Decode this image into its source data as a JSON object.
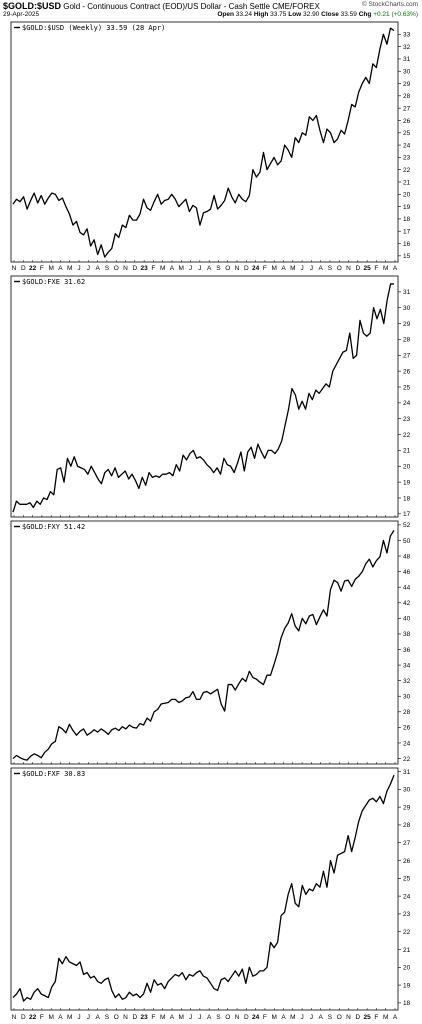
{
  "header": {
    "symbol": "$GOLD:$USD",
    "description": "Gold - Continuous Contract (EOD)/US Dollar - Cash Settle",
    "exchange": "CME/FOREX",
    "date": "29-Apr-2025",
    "open_label": "Open",
    "open": "33.24",
    "high_label": "High",
    "high": "33.75",
    "low_label": "Low",
    "low": "32.90",
    "close_label": "Close",
    "close": "33.59",
    "chg_label": "Chg",
    "chg": "+0.21 (+0.63%)",
    "brand": "© StockCharts.com"
  },
  "x_axis_labels": [
    {
      "label": "N",
      "year": false
    },
    {
      "label": "D",
      "year": false
    },
    {
      "label": "22",
      "year": true
    },
    {
      "label": "F",
      "year": false
    },
    {
      "label": "M",
      "year": false
    },
    {
      "label": "A",
      "year": false
    },
    {
      "label": "M",
      "year": false
    },
    {
      "label": "J",
      "year": false
    },
    {
      "label": "J",
      "year": false
    },
    {
      "label": "A",
      "year": false
    },
    {
      "label": "S",
      "year": false
    },
    {
      "label": "O",
      "year": false
    },
    {
      "label": "N",
      "year": false
    },
    {
      "label": "D",
      "year": false
    },
    {
      "label": "23",
      "year": true
    },
    {
      "label": "F",
      "year": false
    },
    {
      "label": "M",
      "year": false
    },
    {
      "label": "A",
      "year": false
    },
    {
      "label": "M",
      "year": false
    },
    {
      "label": "J",
      "year": false
    },
    {
      "label": "J",
      "year": false
    },
    {
      "label": "A",
      "year": false
    },
    {
      "label": "S",
      "year": false
    },
    {
      "label": "O",
      "year": false
    },
    {
      "label": "N",
      "year": false
    },
    {
      "label": "D",
      "year": false
    },
    {
      "label": "24",
      "year": true
    },
    {
      "label": "F",
      "year": false
    },
    {
      "label": "M",
      "year": false
    },
    {
      "label": "A",
      "year": false
    },
    {
      "label": "M",
      "year": false
    },
    {
      "label": "J",
      "year": false
    },
    {
      "label": "J",
      "year": false
    },
    {
      "label": "A",
      "year": false
    },
    {
      "label": "S",
      "year": false
    },
    {
      "label": "O",
      "year": false
    },
    {
      "label": "N",
      "year": false
    },
    {
      "label": "D",
      "year": false
    },
    {
      "label": "25",
      "year": true
    },
    {
      "label": "F",
      "year": false
    },
    {
      "label": "M",
      "year": false
    },
    {
      "label": "A",
      "year": false
    }
  ],
  "chart_data": [
    {
      "type": "line",
      "label": "$GOLD:$USD (Weekly) 33.59 (28 Apr)",
      "x_start": "2021-11",
      "x_end": "2025-04",
      "ylim": [
        14.5,
        34
      ],
      "yticks": [
        15,
        16,
        17,
        18,
        19,
        20,
        21,
        22,
        23,
        24,
        25,
        26,
        27,
        28,
        29,
        30,
        31,
        32,
        33
      ],
      "values": [
        19.2,
        19.6,
        19.4,
        19.8,
        18.8,
        19.5,
        20.1,
        19.3,
        19.9,
        19.2,
        19.7,
        20.1,
        20.0,
        19.5,
        19.7,
        19.0,
        18.4,
        17.5,
        17.8,
        16.9,
        16.7,
        17.2,
        15.8,
        16.3,
        15.1,
        15.9,
        14.9,
        15.3,
        15.6,
        16.8,
        16.5,
        17.5,
        17.3,
        18.3,
        17.9,
        17.9,
        18.4,
        19.6,
        18.9,
        18.7,
        19.4,
        20.0,
        19.2,
        19.5,
        19.6,
        20.0,
        19.6,
        19.0,
        19.3,
        19.6,
        18.6,
        19.1,
        18.9,
        17.5,
        18.5,
        18.6,
        18.8,
        19.9,
        18.8,
        19.1,
        19.5,
        20.5,
        19.8,
        19.3,
        20.0,
        19.6,
        19.4,
        19.9,
        22.0,
        21.4,
        21.8,
        23.4,
        22.0,
        22.5,
        23.0,
        22.4,
        22.7,
        24.0,
        23.6,
        23.0,
        24.6,
        24.2,
        25.0,
        24.8,
        26.3,
        26.0,
        26.4,
        25.2,
        24.2,
        25.3,
        25.0,
        24.2,
        24.5,
        25.2,
        24.9,
        26.0,
        27.3,
        27.1,
        28.3,
        29.0,
        29.5,
        29.0,
        30.6,
        30.3,
        31.8,
        33.0,
        32.2,
        33.5,
        33.3
      ]
    },
    {
      "type": "line",
      "label": "$GOLD:FXE 31.62",
      "x_start": "2021-11",
      "x_end": "2025-04",
      "ylim": [
        16.8,
        32
      ],
      "yticks": [
        17,
        18,
        19,
        20,
        21,
        22,
        23,
        24,
        25,
        26,
        27,
        28,
        29,
        30,
        31
      ],
      "values": [
        17.1,
        17.8,
        17.6,
        17.6,
        17.6,
        17.7,
        17.4,
        17.8,
        17.6,
        18.0,
        17.9,
        18.4,
        18.2,
        19.8,
        19.9,
        19.0,
        20.5,
        20.0,
        20.6,
        20.0,
        19.9,
        19.8,
        19.5,
        20.0,
        19.6,
        19.2,
        18.9,
        19.6,
        19.8,
        19.4,
        19.9,
        19.3,
        19.5,
        19.7,
        19.2,
        19.5,
        19.1,
        18.6,
        19.3,
        18.8,
        19.6,
        19.3,
        19.4,
        19.3,
        19.5,
        19.5,
        19.6,
        19.4,
        20.1,
        19.7,
        20.7,
        20.4,
        20.8,
        21.0,
        20.5,
        20.6,
        20.4,
        20.1,
        19.9,
        19.6,
        19.9,
        19.5,
        20.5,
        20.1,
        20.0,
        19.6,
        20.2,
        20.9,
        19.7,
        20.9,
        21.2,
        20.5,
        21.4,
        20.9,
        20.5,
        21.0,
        21.0,
        20.8,
        21.1,
        21.6,
        22.6,
        23.6,
        24.9,
        24.5,
        23.6,
        24.1,
        23.6,
        24.6,
        24.2,
        24.8,
        24.6,
        24.9,
        25.2,
        25.0,
        26.0,
        26.4,
        26.8,
        27.2,
        27.3,
        28.4,
        26.8,
        27.0,
        29.2,
        28.4,
        28.2,
        28.4,
        30.0,
        29.3,
        29.9,
        29.0,
        30.5,
        31.5,
        31.5
      ]
    },
    {
      "type": "line",
      "label": "$GOLD:FXY 51.42",
      "x_start": "2021-11",
      "x_end": "2025-04",
      "ylim": [
        21.3,
        52.5
      ],
      "yticks": [
        22,
        24,
        26,
        28,
        30,
        32,
        34,
        36,
        38,
        40,
        42,
        44,
        46,
        48,
        50,
        52
      ],
      "values": [
        22.0,
        22.4,
        22.1,
        21.9,
        21.8,
        22.3,
        22.6,
        22.4,
        22.1,
        22.8,
        23.2,
        23.9,
        24.2,
        26.1,
        25.8,
        25.3,
        26.4,
        25.6,
        25.0,
        25.5,
        25.8,
        25.0,
        25.3,
        25.7,
        25.4,
        25.8,
        25.5,
        25.1,
        25.7,
        25.9,
        25.6,
        26.1,
        25.8,
        26.3,
        26.0,
        25.9,
        26.5,
        26.3,
        27.2,
        26.8,
        28.0,
        28.3,
        29.0,
        29.1,
        29.2,
        29.6,
        29.6,
        29.2,
        29.4,
        29.8,
        29.9,
        30.6,
        29.6,
        29.6,
        30.5,
        30.6,
        30.3,
        30.6,
        30.9,
        29.0,
        28.1,
        31.5,
        31.5,
        30.8,
        31.6,
        32.3,
        31.9,
        33.2,
        32.4,
        32.2,
        31.8,
        31.5,
        32.7,
        32.7,
        34.1,
        35.6,
        37.5,
        38.7,
        39.4,
        40.6,
        39.0,
        38.4,
        40.0,
        39.3,
        40.3,
        40.5,
        39.2,
        40.2,
        41.1,
        40.3,
        43.7,
        44.9,
        44.6,
        43.5,
        44.8,
        44.9,
        44.1,
        45.0,
        45.4,
        46.0,
        47.0,
        47.6,
        46.6,
        47.4,
        47.9,
        50.0,
        48.4,
        50.6,
        51.3
      ]
    },
    {
      "type": "line",
      "label": "$GOLD:FXF 30.83",
      "x_start": "2021-11",
      "x_end": "2025-04",
      "ylim": [
        17.6,
        31.2
      ],
      "yticks": [
        18,
        19,
        20,
        21,
        22,
        23,
        24,
        25,
        26,
        27,
        28,
        29,
        30,
        31
      ],
      "values": [
        18.3,
        18.5,
        18.8,
        18.1,
        18.3,
        18.2,
        18.6,
        18.8,
        18.5,
        18.4,
        18.3,
        18.9,
        19.2,
        20.5,
        20.2,
        20.6,
        20.3,
        20.2,
        20.1,
        20.3,
        19.6,
        19.7,
        19.4,
        19.5,
        19.2,
        19.1,
        19.3,
        19.4,
        18.7,
        18.3,
        18.5,
        18.2,
        18.3,
        18.6,
        18.4,
        18.5,
        18.3,
        18.5,
        19.1,
        18.6,
        19.3,
        19.0,
        19.1,
        18.8,
        19.2,
        19.4,
        19.6,
        19.5,
        19.7,
        19.3,
        19.6,
        19.5,
        19.7,
        19.8,
        19.5,
        19.4,
        19.1,
        18.8,
        18.7,
        19.3,
        19.4,
        19.2,
        19.5,
        19.8,
        19.5,
        19.9,
        19.1,
        20.0,
        19.5,
        19.6,
        19.8,
        19.8,
        20.0,
        21.4,
        21.1,
        21.4,
        22.9,
        23.1,
        24.1,
        24.7,
        23.6,
        23.4,
        24.6,
        24.1,
        24.4,
        24.3,
        24.7,
        24.5,
        25.4,
        24.5,
        26.0,
        25.3,
        26.3,
        26.4,
        26.5,
        27.4,
        26.5,
        27.3,
        28.2,
        28.8,
        29.1,
        29.4,
        29.5,
        29.3,
        29.6,
        29.2,
        29.9,
        30.3,
        30.8
      ]
    }
  ]
}
